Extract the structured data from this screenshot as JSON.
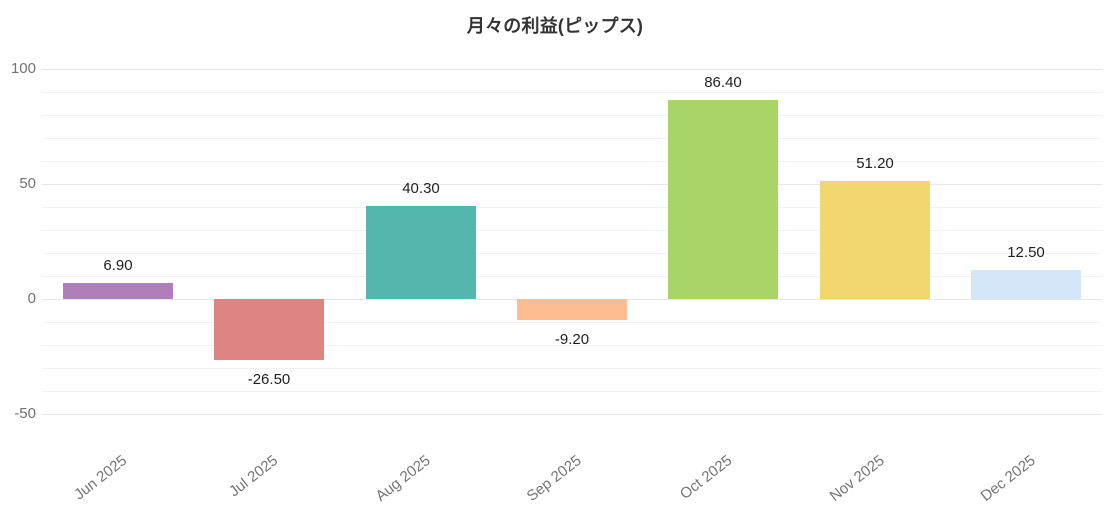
{
  "title": "月々の利益(ピップス)",
  "chart_data": {
    "type": "bar",
    "title": "月々の利益(ピップス)",
    "categories": [
      "Jun 2025",
      "Jul 2025",
      "Aug 2025",
      "Sep 2025",
      "Oct 2025",
      "Nov 2025",
      "Dec 2025"
    ],
    "values": [
      6.9,
      -26.5,
      40.3,
      -9.2,
      86.4,
      51.2,
      12.5
    ],
    "value_labels": [
      "6.90",
      "-26.50",
      "40.30",
      "-9.20",
      "86.40",
      "51.20",
      "12.50"
    ],
    "bar_colors": [
      "#af7fbc",
      "#de8583",
      "#55b6b0",
      "#fdbd90",
      "#a9d468",
      "#f2d66e",
      "#d3e7f8"
    ],
    "xlabel": "",
    "ylabel": "",
    "ylim": [
      -50,
      100
    ],
    "yticks": [
      100,
      50,
      0,
      -50
    ],
    "ytick_labels": [
      "100",
      "50",
      "0",
      "-50"
    ],
    "minor_grid_step": 10,
    "grid": "horizontal-solid-light",
    "legend": "none",
    "value_label_position": "outside-end",
    "x_label_rotation_deg": -38
  },
  "style_colors": {
    "title_text": "#333333",
    "axis_text": "#757575",
    "value_text": "#1f1f1f",
    "major_grid": "#e7e7e7",
    "minor_grid": "#f2f0f0",
    "background": "#ffffff"
  }
}
